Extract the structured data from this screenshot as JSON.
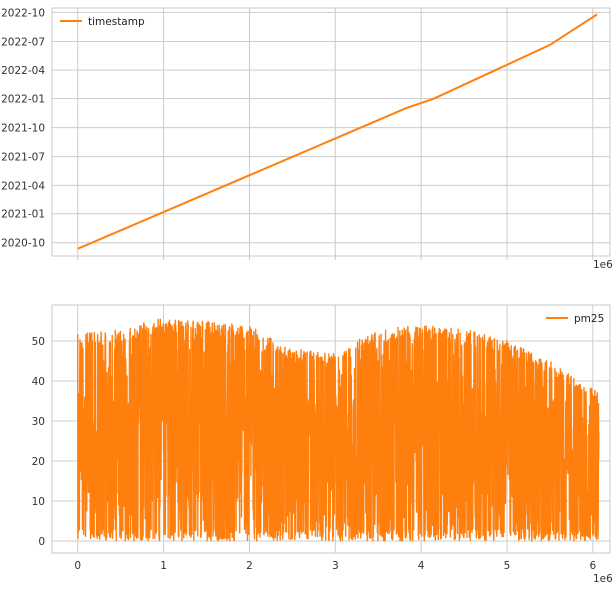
{
  "chart_data": [
    {
      "type": "line",
      "title": "",
      "xlabel": "",
      "ylabel": "",
      "x_offset_label": "1e6",
      "xlim": [
        -0.3,
        6.2
      ],
      "ylim": [
        "2020-08-20",
        "2022-10-15"
      ],
      "x_ticks": [
        0,
        1,
        2,
        3,
        4,
        5,
        6
      ],
      "x_tick_labels_visible": false,
      "y_tick_labels": [
        "2020-10",
        "2021-01",
        "2021-04",
        "2021-07",
        "2021-10",
        "2022-01",
        "2022-04",
        "2022-07",
        "2022-10"
      ],
      "grid": true,
      "legend": "upper-left",
      "series": [
        {
          "name": "timestamp",
          "color": "#ff7f0e",
          "points": [
            {
              "x": 0.0,
              "y": "2020-09-12"
            },
            {
              "x": 3.82,
              "y": "2021-12-01"
            },
            {
              "x": 4.15,
              "y": "2022-01-01"
            },
            {
              "x": 5.5,
              "y": "2022-06-20"
            },
            {
              "x": 6.05,
              "y": "2022-09-25"
            }
          ]
        }
      ]
    },
    {
      "type": "line",
      "title": "",
      "xlabel": "",
      "ylabel": "",
      "x_offset_label": "1e6",
      "xlim": [
        -0.3,
        6.2
      ],
      "ylim": [
        -3,
        59
      ],
      "x_ticks": [
        0,
        1,
        2,
        3,
        4,
        5,
        6
      ],
      "x_tick_labels": [
        "0",
        "1",
        "2",
        "3",
        "4",
        "5",
        "6"
      ],
      "y_ticks": [
        0,
        10,
        20,
        30,
        40,
        50
      ],
      "y_tick_labels": [
        "0",
        "10",
        "20",
        "30",
        "40",
        "50"
      ],
      "grid": true,
      "legend": "upper-right",
      "series": [
        {
          "name": "pm25",
          "color": "#ff7f0e",
          "x_range": [
            0,
            6.07
          ],
          "value_range": [
            0,
            56
          ],
          "envelope": [
            {
              "x": 0.0,
              "upper": 52,
              "lower": 0
            },
            {
              "x": 0.5,
              "upper": 53,
              "lower": 0
            },
            {
              "x": 1.0,
              "upper": 56,
              "lower": 0
            },
            {
              "x": 1.5,
              "upper": 55,
              "lower": 0
            },
            {
              "x": 2.0,
              "upper": 54,
              "lower": 0
            },
            {
              "x": 2.5,
              "upper": 48,
              "lower": 0
            },
            {
              "x": 3.0,
              "upper": 47,
              "lower": 0
            },
            {
              "x": 3.5,
              "upper": 53,
              "lower": 0
            },
            {
              "x": 4.0,
              "upper": 54,
              "lower": 0
            },
            {
              "x": 4.5,
              "upper": 53,
              "lower": 0
            },
            {
              "x": 5.0,
              "upper": 50,
              "lower": 0
            },
            {
              "x": 5.5,
              "upper": 45,
              "lower": 0
            },
            {
              "x": 6.07,
              "upper": 37,
              "lower": 0
            }
          ]
        }
      ]
    }
  ]
}
